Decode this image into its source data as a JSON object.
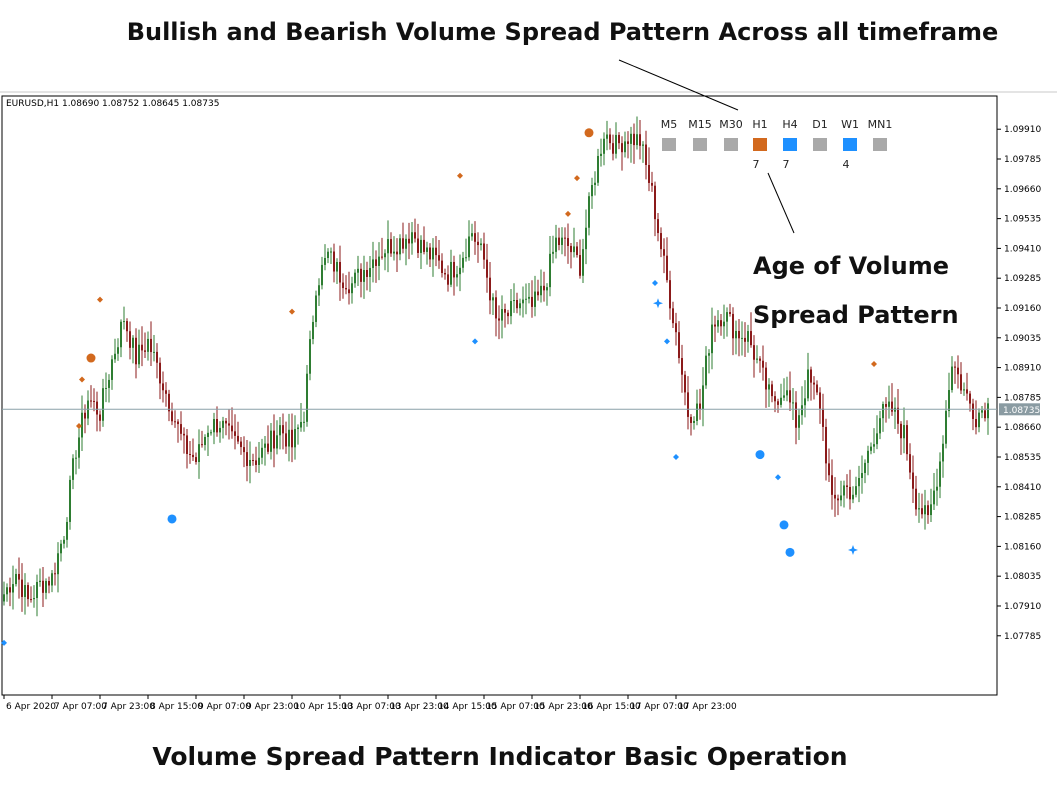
{
  "header": {
    "title": "Bullish and Bearish Volume Spread Pattern Across all timeframe"
  },
  "annotation": {
    "age_line1": "Age of Volume",
    "age_line2": "Spread Pattern"
  },
  "footer": {
    "title": "Volume Spread Pattern Indicator Basic Operation"
  },
  "chart_data": {
    "type": "candlestick",
    "symbol_info": "EURUSD,H1  1.08690 1.08752 1.08645 1.08735",
    "current_price": 1.08735,
    "current_price_label": "1.08735",
    "ylim": [
      1.07675,
      1.09978
    ],
    "y_ticks": [
      "1.09910",
      "1.09785",
      "1.09660",
      "1.09535",
      "1.09410",
      "1.09285",
      "1.09160",
      "1.09035",
      "1.08910",
      "1.08785",
      "1.08660",
      "1.08535",
      "1.08410",
      "1.08285",
      "1.08160",
      "1.08035",
      "1.07910",
      "1.07785"
    ],
    "x_ticks": [
      "6 Apr 2020",
      "7 Apr 07:00",
      "7 Apr 23:00",
      "8 Apr 15:00",
      "9 Apr 07:00",
      "9 Apr 23:00",
      "10 Apr 15:00",
      "13 Apr 07:00",
      "13 Apr 23:00",
      "14 Apr 15:00",
      "15 Apr 07:00",
      "15 Apr 23:00",
      "16 Apr 15:00",
      "17 Apr 07:00",
      "17 Apr 23:00"
    ],
    "colors": {
      "bull": "#2e7d32",
      "bear": "#8b1a1a",
      "bearish_signal": "#d2691e",
      "bullish_signal": "#1e90ff",
      "price_line": "#8aa0a8",
      "price_tag": "#8a9ba2",
      "neutral_box": "#a9a9a9"
    },
    "timeframes": [
      {
        "label": "M5",
        "state": "none",
        "age": ""
      },
      {
        "label": "M15",
        "state": "none",
        "age": ""
      },
      {
        "label": "M30",
        "state": "none",
        "age": ""
      },
      {
        "label": "H1",
        "state": "bearish",
        "age": "7"
      },
      {
        "label": "H4",
        "state": "bullish",
        "age": "7"
      },
      {
        "label": "D1",
        "state": "none",
        "age": ""
      },
      {
        "label": "W1",
        "state": "bullish",
        "age": "4"
      },
      {
        "label": "MN1",
        "state": "none",
        "age": ""
      }
    ],
    "anchors": [
      [
        0,
        1.0796
      ],
      [
        4,
        1.0805
      ],
      [
        8,
        1.0793
      ],
      [
        12,
        1.08
      ],
      [
        16,
        1.0803
      ],
      [
        20,
        1.0822
      ],
      [
        24,
        1.0857
      ],
      [
        28,
        1.0878
      ],
      [
        32,
        1.0872
      ],
      [
        36,
        1.0894
      ],
      [
        40,
        1.0912
      ],
      [
        44,
        1.0895
      ],
      [
        48,
        1.0902
      ],
      [
        52,
        1.0888
      ],
      [
        56,
        1.0873
      ],
      [
        60,
        1.0858
      ],
      [
        64,
        1.0852
      ],
      [
        68,
        1.0866
      ],
      [
        72,
        1.0868
      ],
      [
        76,
        1.086
      ],
      [
        80,
        1.0855
      ],
      [
        84,
        1.0853
      ],
      [
        88,
        1.0858
      ],
      [
        92,
        1.0866
      ],
      [
        96,
        1.0858
      ],
      [
        100,
        1.0872
      ],
      [
        104,
        1.0926
      ],
      [
        108,
        1.0938
      ],
      [
        112,
        1.093
      ],
      [
        116,
        1.0926
      ],
      [
        120,
        1.0932
      ],
      [
        124,
        1.0938
      ],
      [
        128,
        1.0942
      ],
      [
        132,
        1.0944
      ],
      [
        136,
        1.0948
      ],
      [
        140,
        1.094
      ],
      [
        144,
        1.0936
      ],
      [
        148,
        1.093
      ],
      [
        152,
        1.0936
      ],
      [
        156,
        1.0948
      ],
      [
        160,
        1.0936
      ],
      [
        164,
        1.091
      ],
      [
        168,
        1.0913
      ],
      [
        172,
        1.0918
      ],
      [
        176,
        1.0916
      ],
      [
        180,
        1.0924
      ],
      [
        184,
        1.0944
      ],
      [
        188,
        1.0942
      ],
      [
        192,
        1.0934
      ],
      [
        196,
        1.0966
      ],
      [
        200,
        1.099
      ],
      [
        204,
        1.0984
      ],
      [
        208,
        1.0988
      ],
      [
        212,
        1.0986
      ],
      [
        216,
        1.0964
      ],
      [
        220,
        1.0934
      ],
      [
        224,
        1.0906
      ],
      [
        228,
        1.0872
      ],
      [
        232,
        1.0874
      ],
      [
        236,
        1.091
      ],
      [
        240,
        1.0914
      ],
      [
        244,
        1.0906
      ],
      [
        248,
        1.0904
      ],
      [
        252,
        1.089
      ],
      [
        256,
        1.0876
      ],
      [
        260,
        1.0883
      ],
      [
        264,
        1.0868
      ],
      [
        268,
        1.0886
      ],
      [
        272,
        1.0876
      ],
      [
        276,
        1.0833
      ],
      [
        280,
        1.0841
      ],
      [
        284,
        1.0838
      ],
      [
        288,
        1.0855
      ],
      [
        292,
        1.0871
      ],
      [
        296,
        1.0873
      ],
      [
        300,
        1.0863
      ],
      [
        304,
        1.0836
      ],
      [
        308,
        1.0826
      ],
      [
        312,
        1.0852
      ],
      [
        316,
        1.0894
      ],
      [
        320,
        1.0881
      ],
      [
        324,
        1.0871
      ],
      [
        328,
        1.0876
      ]
    ],
    "markers": [
      {
        "i": 25,
        "kind": "diamond",
        "side": "bear",
        "price": 1.08665
      },
      {
        "i": 26,
        "kind": "diamond",
        "side": "bear",
        "price": 1.0886
      },
      {
        "i": 29,
        "kind": "circle",
        "side": "bear",
        "price": 1.0895
      },
      {
        "i": 32,
        "kind": "diamond",
        "side": "bear",
        "price": 1.09195
      },
      {
        "i": 56,
        "kind": "circle",
        "side": "bull",
        "price": 1.08275
      },
      {
        "i": 96,
        "kind": "diamond",
        "side": "bear",
        "price": 1.09145
      },
      {
        "i": 152,
        "kind": "diamond",
        "side": "bear",
        "price": 1.09715
      },
      {
        "i": 157,
        "kind": "diamond",
        "side": "bull",
        "price": 1.0902
      },
      {
        "i": 188,
        "kind": "diamond",
        "side": "bear",
        "price": 1.09555
      },
      {
        "i": 191,
        "kind": "diamond",
        "side": "bear",
        "price": 1.09705
      },
      {
        "i": 195,
        "kind": "circle",
        "side": "bear",
        "price": 1.09895
      },
      {
        "i": 217,
        "kind": "diamond",
        "side": "bull",
        "price": 1.09265
      },
      {
        "i": 218,
        "kind": "star",
        "side": "bull",
        "price": 1.0918
      },
      {
        "i": 221,
        "kind": "diamond",
        "side": "bull",
        "price": 1.0902
      },
      {
        "i": 224,
        "kind": "diamond",
        "side": "bull",
        "price": 1.08535
      },
      {
        "i": 252,
        "kind": "circle",
        "side": "bull",
        "price": 1.08545
      },
      {
        "i": 258,
        "kind": "diamond",
        "side": "bull",
        "price": 1.0845
      },
      {
        "i": 260,
        "kind": "circle",
        "side": "bull",
        "price": 1.0825
      },
      {
        "i": 262,
        "kind": "circle",
        "side": "bull",
        "price": 1.08135
      },
      {
        "i": 283,
        "kind": "star",
        "side": "bull",
        "price": 1.08145
      },
      {
        "i": 290,
        "kind": "diamond",
        "side": "bear",
        "price": 1.08925
      },
      {
        "i": 0,
        "kind": "diamond",
        "side": "bull",
        "price": 1.07755
      }
    ]
  }
}
